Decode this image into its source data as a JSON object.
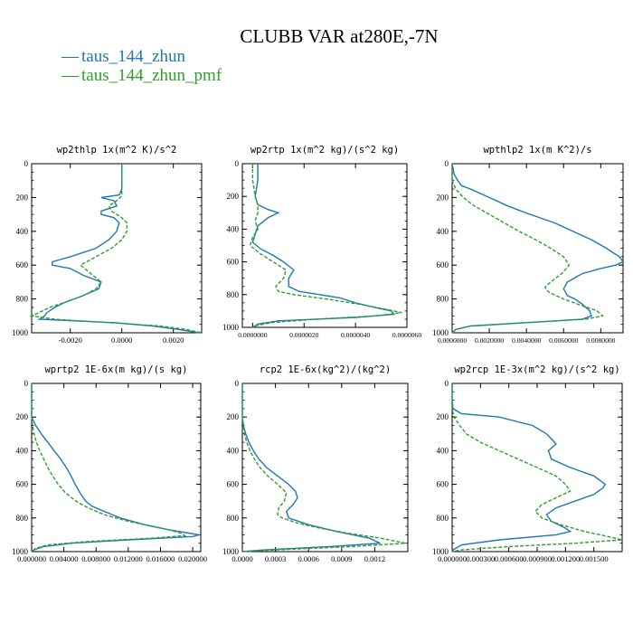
{
  "figure": {
    "title": "CLUBB VAR at280E,-7N",
    "legend": [
      {
        "label": "taus_144_zhun",
        "color": "#1f77b4",
        "dash": "solid"
      },
      {
        "label": "taus_144_zhun_pmf",
        "color": "#2ca02c",
        "dash": "dashed"
      }
    ]
  },
  "chart_data": [
    {
      "type": "line",
      "title": "wp2thlp   1x(m^2 K)/s^2",
      "xlim": [
        -0.0035,
        0.0031
      ],
      "ylim": [
        1000,
        0
      ],
      "xticks": [
        -0.002,
        0,
        0.002
      ],
      "xticklabels": [
        "-0.0020",
        "0.0000",
        "0.0020"
      ],
      "yticks": [
        0,
        200,
        400,
        600,
        800,
        1000
      ],
      "series": [
        {
          "name": "taus_144_zhun",
          "y": [
            0,
            100,
            150,
            185,
            200,
            220,
            250,
            280,
            300,
            320,
            350,
            400,
            450,
            500,
            550,
            580,
            600,
            620,
            660,
            700,
            740,
            780,
            820,
            850,
            880,
            900,
            920,
            940,
            960,
            980,
            1000
          ],
          "x": [
            0,
            0,
            0,
            -0.0001,
            -0.0008,
            -0.0003,
            -0.0002,
            -0.0008,
            -0.0008,
            -0.0003,
            -0.0001,
            -0.0002,
            -0.0005,
            -0.001,
            -0.002,
            -0.0027,
            -0.0027,
            -0.002,
            -0.0015,
            -0.0008,
            -0.0009,
            -0.0015,
            -0.0022,
            -0.0026,
            -0.0029,
            -0.003,
            -0.0032,
            -0.0003,
            0.0012,
            0.0022,
            0.003
          ]
        },
        {
          "name": "taus_144_zhun_pmf",
          "y": [
            0,
            100,
            150,
            190,
            220,
            250,
            280,
            300,
            320,
            350,
            400,
            450,
            500,
            550,
            600,
            650,
            700,
            740,
            780,
            820,
            850,
            880,
            900,
            920,
            940,
            960,
            980,
            1000
          ],
          "x": [
            0,
            0,
            0,
            0,
            -0.0002,
            -0.0005,
            -0.0004,
            -0.0002,
            0.0,
            0.0002,
            0.0002,
            0.0,
            -0.0004,
            -0.001,
            -0.0016,
            -0.0012,
            -0.0008,
            -0.001,
            -0.0015,
            -0.0022,
            -0.0028,
            -0.0032,
            -0.0035,
            -0.0026,
            -0.0005,
            0.0015,
            0.0025,
            0.0031
          ]
        }
      ]
    },
    {
      "type": "line",
      "title": "wp2rtp   1x(m^2 kg)/(s^2 kg)",
      "xlim": [
        -4e-07,
        6e-06
      ],
      "ylim": [
        1000,
        0
      ],
      "xticks": [
        0,
        2e-06,
        4e-06,
        6e-06
      ],
      "xticklabels": [
        "0.0000000",
        "0.0000020",
        "0.0000040",
        "0.0000060"
      ],
      "yticks": [
        0,
        200,
        400,
        600,
        800,
        1000
      ],
      "series": [
        {
          "name": "taus_144_zhun",
          "y": [
            0,
            100,
            200,
            250,
            280,
            300,
            330,
            380,
            430,
            480,
            520,
            560,
            600,
            650,
            700,
            750,
            780,
            800,
            820,
            850,
            880,
            900,
            920,
            940,
            960,
            980,
            1000
          ],
          "x": [
            2e-07,
            2e-07,
            1e-07,
            2e-07,
            6e-07,
            1e-06,
            6e-07,
            2e-07,
            1e-07,
            0.0,
            3e-07,
            8e-07,
            1.2e-06,
            1.6e-06,
            1.4e-06,
            1.4e-06,
            1.8e-06,
            2.6e-06,
            3.4e-06,
            4e-06,
            4.8e-06,
            5.4e-06,
            5.5e-06,
            4e-06,
            1e-06,
            2e-07,
            0.0
          ]
        },
        {
          "name": "taus_144_zhun_pmf",
          "y": [
            0,
            100,
            200,
            250,
            300,
            350,
            400,
            450,
            500,
            550,
            600,
            650,
            700,
            750,
            780,
            800,
            830,
            860,
            890,
            910,
            930,
            950,
            970,
            990,
            1000
          ],
          "x": [
            0.0,
            0.0,
            1e-07,
            2e-07,
            2e-07,
            1e-07,
            2e-07,
            0.0,
            -1e-07,
            3e-07,
            8e-07,
            1.3e-06,
            1.2e-06,
            9e-07,
            1e-06,
            1.6e-06,
            3e-06,
            4.2e-06,
            5.2e-06,
            5.8e-06,
            4.8e-06,
            2.5e-06,
            8e-07,
            1e-07,
            0.0
          ]
        }
      ]
    },
    {
      "type": "line",
      "title": "wpthlp2   1x(m K^2)/s",
      "xlim": [
        0,
        0.0092
      ],
      "ylim": [
        1000,
        0
      ],
      "xticks": [
        0,
        0.002,
        0.004,
        0.006,
        0.008
      ],
      "xticklabels": [
        "0.0000000",
        "0.0020000",
        "0.0040000",
        "0.0060000",
        "0.0080000"
      ],
      "yticks": [
        0,
        200,
        400,
        600,
        800,
        1000
      ],
      "series": [
        {
          "name": "taus_144_zhun",
          "y": [
            0,
            60,
            100,
            130,
            150,
            200,
            250,
            300,
            350,
            400,
            450,
            500,
            550,
            580,
            600,
            620,
            650,
            700,
            740,
            780,
            800,
            830,
            870,
            900,
            920,
            940,
            960,
            980,
            1000
          ],
          "x": [
            0.0,
            0.0001,
            0.0003,
            0.0005,
            0.001,
            0.002,
            0.003,
            0.0042,
            0.0055,
            0.0065,
            0.0075,
            0.0083,
            0.009,
            0.0092,
            0.0088,
            0.008,
            0.007,
            0.0062,
            0.006,
            0.0062,
            0.0066,
            0.007,
            0.0074,
            0.0075,
            0.007,
            0.004,
            0.001,
            0.0002,
            0.0
          ]
        },
        {
          "name": "taus_144_zhun_pmf",
          "y": [
            0,
            60,
            100,
            150,
            200,
            250,
            300,
            350,
            400,
            450,
            500,
            550,
            600,
            650,
            700,
            730,
            760,
            800,
            840,
            870,
            900,
            920,
            940,
            960,
            980,
            1000
          ],
          "x": [
            0.0,
            0.0,
            0.0,
            0.0002,
            0.0006,
            0.0012,
            0.002,
            0.0028,
            0.0036,
            0.0045,
            0.0053,
            0.006,
            0.0063,
            0.0059,
            0.0053,
            0.005,
            0.0052,
            0.006,
            0.007,
            0.0078,
            0.0081,
            0.0072,
            0.004,
            0.001,
            0.0002,
            0.0
          ]
        }
      ]
    },
    {
      "type": "line",
      "title": "wprtp2   1E-6x(m kg)/(s kg)",
      "xlim": [
        0,
        0.021
      ],
      "ylim": [
        1000,
        0
      ],
      "xticks": [
        0,
        0.004,
        0.008,
        0.012,
        0.016,
        0.02
      ],
      "xticklabels": [
        "0.000000",
        "0.004000",
        "0.008000",
        "0.012000",
        "0.016000",
        "0.020000"
      ],
      "yticks": [
        0,
        200,
        400,
        600,
        800,
        1000
      ],
      "series": [
        {
          "name": "taus_144_zhun",
          "y": [
            0,
            100,
            200,
            250,
            300,
            350,
            400,
            450,
            500,
            550,
            600,
            650,
            700,
            730,
            760,
            800,
            840,
            870,
            890,
            900,
            910,
            930,
            950,
            970,
            990,
            1000
          ],
          "x": [
            0,
            0,
            0,
            0.0005,
            0.0012,
            0.002,
            0.0028,
            0.0036,
            0.0043,
            0.0049,
            0.0054,
            0.006,
            0.0067,
            0.0075,
            0.009,
            0.011,
            0.014,
            0.017,
            0.0195,
            0.0208,
            0.02,
            0.012,
            0.005,
            0.0015,
            0.0003,
            0
          ]
        },
        {
          "name": "taus_144_zhun_pmf",
          "y": [
            0,
            100,
            200,
            250,
            300,
            350,
            400,
            450,
            500,
            550,
            600,
            650,
            700,
            740,
            780,
            820,
            850,
            870,
            890,
            905,
            920,
            940,
            960,
            980,
            1000
          ],
          "x": [
            0,
            0,
            0,
            0.0001,
            0.0003,
            0.0006,
            0.001,
            0.0015,
            0.002,
            0.0026,
            0.0033,
            0.0042,
            0.0055,
            0.007,
            0.009,
            0.012,
            0.015,
            0.017,
            0.0185,
            0.019,
            0.015,
            0.007,
            0.002,
            0.0005,
            0
          ]
        }
      ]
    },
    {
      "type": "line",
      "title": "rcp2   1E-6x(kg^2)/(kg^2)",
      "xlim": [
        0,
        0.0015
      ],
      "ylim": [
        1000,
        0
      ],
      "xticks": [
        0,
        0.0003,
        0.0006,
        0.0009,
        0.0012
      ],
      "xticklabels": [
        "0.0000",
        "0.0003",
        "0.0006",
        "0.0009",
        "0.0012"
      ],
      "yticks": [
        0,
        200,
        400,
        600,
        800,
        1000
      ],
      "series": [
        {
          "name": "taus_144_zhun",
          "y": [
            0,
            100,
            200,
            250,
            300,
            350,
            400,
            450,
            500,
            550,
            600,
            640,
            680,
            720,
            760,
            800,
            840,
            880,
            920,
            950,
            970,
            990,
            1000
          ],
          "x": [
            0,
            0,
            0,
            1e-05,
            3e-05,
            6e-05,
            0.0001,
            0.00015,
            0.00022,
            0.00032,
            0.00042,
            0.00048,
            0.0005,
            0.00046,
            0.0004,
            0.00042,
            0.0006,
            0.00085,
            0.00115,
            0.00125,
            0.0008,
            0.0002,
            0
          ]
        },
        {
          "name": "taus_144_zhun_pmf",
          "y": [
            0,
            100,
            200,
            250,
            300,
            350,
            400,
            450,
            500,
            550,
            600,
            650,
            700,
            740,
            780,
            800,
            830,
            860,
            890,
            920,
            950,
            970,
            990,
            1000
          ],
          "x": [
            0,
            0,
            0,
            1e-05,
            2e-05,
            4e-05,
            7e-05,
            0.00011,
            0.00016,
            0.00023,
            0.00032,
            0.0004,
            0.00038,
            0.00033,
            0.00032,
            0.00036,
            0.0005,
            0.0007,
            0.00095,
            0.00125,
            0.00148,
            0.001,
            0.0003,
            0
          ]
        }
      ]
    },
    {
      "type": "line",
      "title": "wp2rcp   1E-3x(m^2 kg)/(s^2 kg)",
      "xlim": [
        0,
        0.0018
      ],
      "ylim": [
        1000,
        0
      ],
      "xticks": [
        0,
        0.0003,
        0.0006,
        0.0009,
        0.0012,
        0.0015
      ],
      "xticklabels": [
        "0.000000",
        "0.000300",
        "0.000600",
        "0.000900",
        "0.001200",
        "0.001500"
      ],
      "yticks": [
        0,
        200,
        400,
        600,
        800,
        1000
      ],
      "series": [
        {
          "name": "taus_144_zhun",
          "y": [
            0,
            100,
            150,
            180,
            200,
            250,
            300,
            330,
            360,
            400,
            450,
            500,
            550,
            600,
            620,
            660,
            700,
            740,
            780,
            820,
            860,
            880,
            900,
            930,
            960,
            990,
            1000
          ],
          "x": [
            0,
            0,
            1e-05,
            0.0001,
            0.0005,
            0.00085,
            0.001,
            0.00105,
            0.0011,
            0.00102,
            0.00105,
            0.00125,
            0.0015,
            0.00162,
            0.0016,
            0.0015,
            0.0013,
            0.0011,
            0.001,
            0.00105,
            0.0012,
            0.00125,
            0.0011,
            0.0005,
            0.0001,
            1e-05,
            0
          ]
        },
        {
          "name": "taus_144_zhun_pmf",
          "y": [
            0,
            100,
            150,
            200,
            250,
            300,
            350,
            400,
            450,
            500,
            550,
            600,
            640,
            680,
            720,
            760,
            800,
            840,
            880,
            910,
            930,
            950,
            970,
            990,
            1000
          ],
          "x": [
            0,
            0,
            0,
            2e-05,
            8e-05,
            0.00015,
            0.0003,
            0.0005,
            0.0007,
            0.0009,
            0.0011,
            0.0012,
            0.00125,
            0.0011,
            0.00095,
            0.00088,
            0.00095,
            0.00115,
            0.0014,
            0.00165,
            0.0018,
            0.0013,
            0.0006,
            0.0001,
            0
          ]
        }
      ]
    }
  ]
}
